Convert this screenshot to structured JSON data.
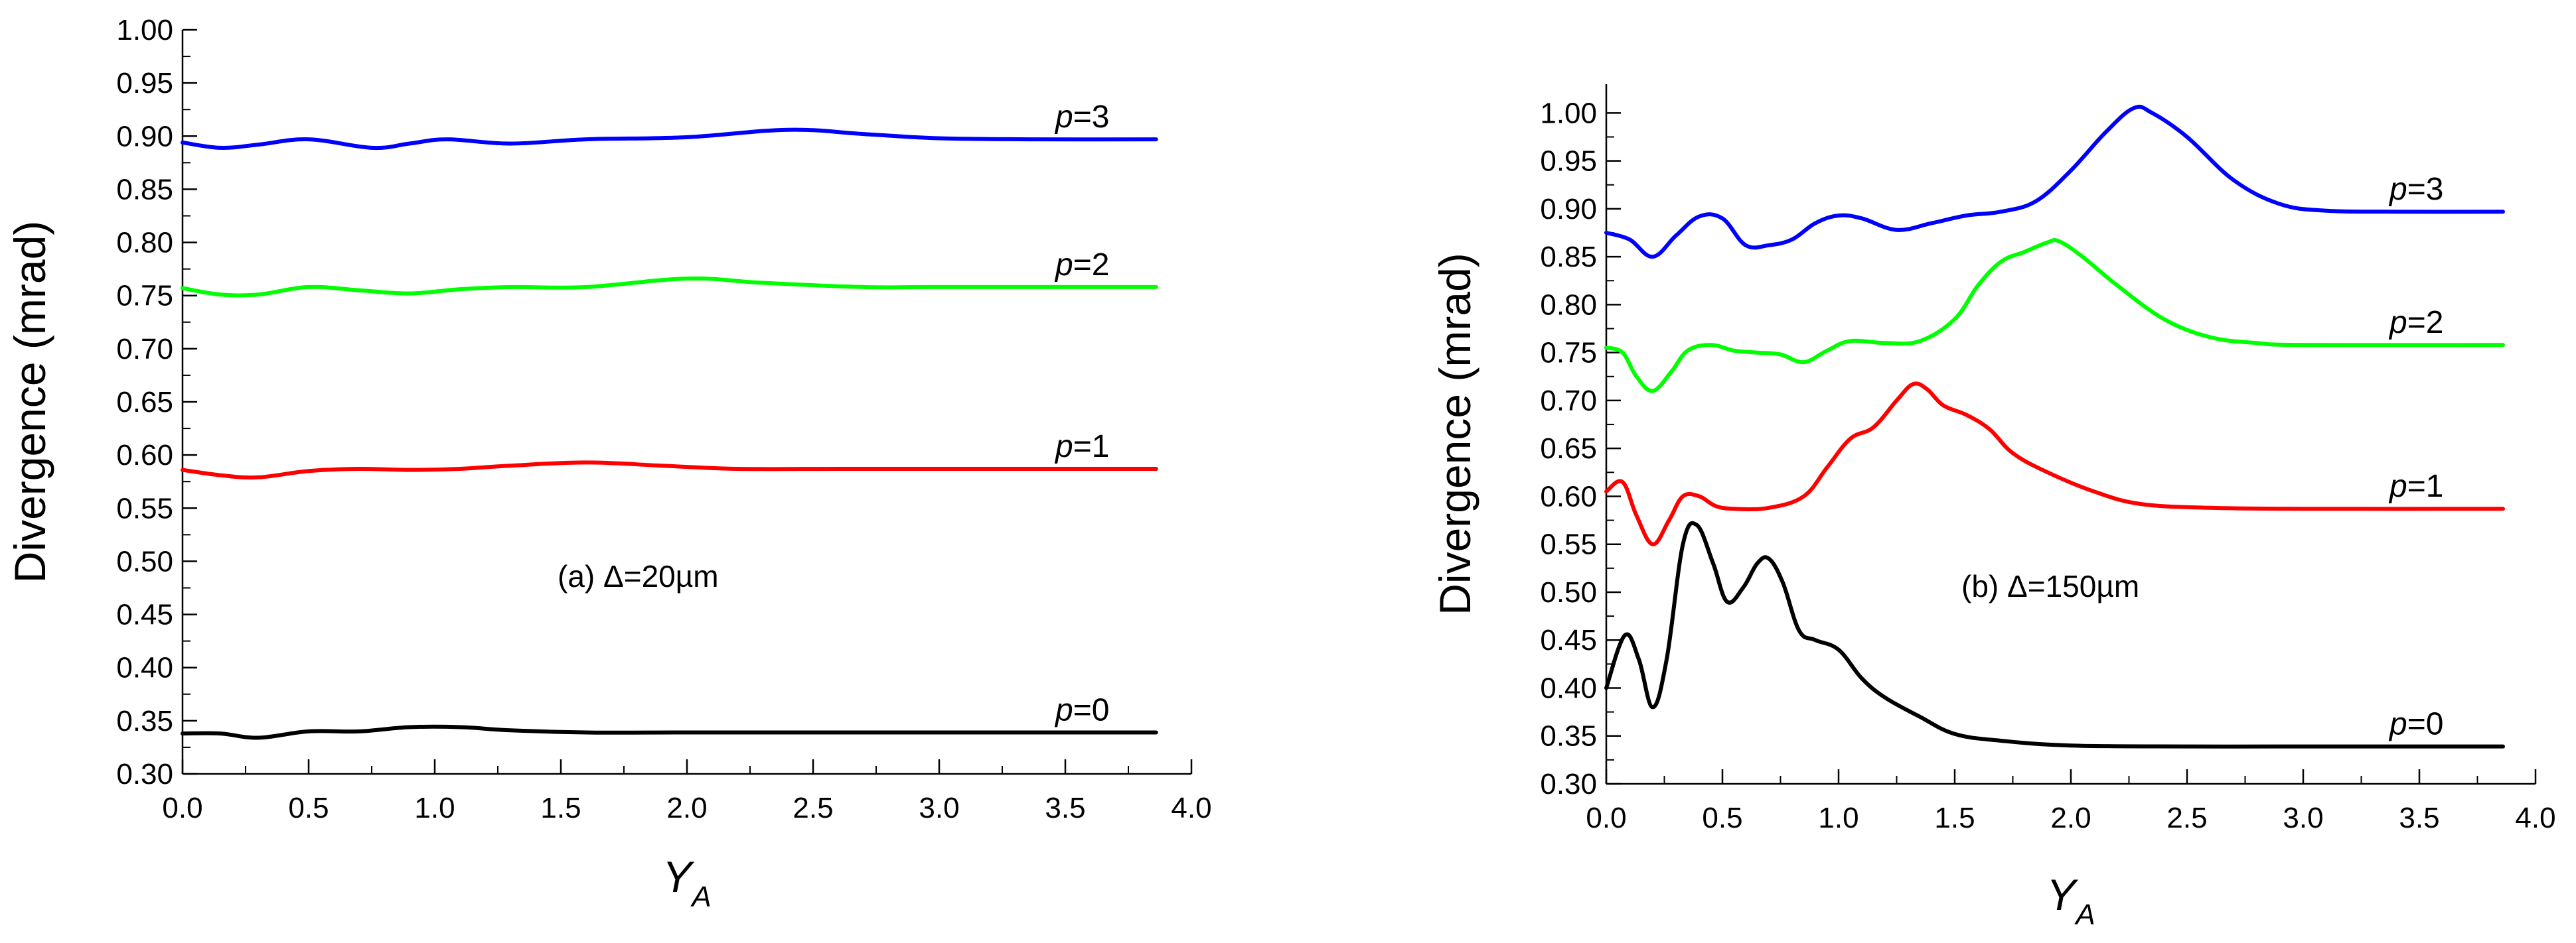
{
  "chart_data": [
    {
      "type": "line",
      "id": "a",
      "annotation": "(a) Δ=20µm",
      "xlabel": "Y",
      "xlabel_sub": "A",
      "ylabel": "Divergence (mrad)",
      "xlim": [
        0.0,
        4.0
      ],
      "ylim": [
        0.3,
        1.0
      ],
      "xticks": [
        "0.0",
        "0.5",
        "1.0",
        "1.5",
        "2.0",
        "2.5",
        "3.0",
        "3.5",
        "4.0"
      ],
      "yticks": [
        "0.30",
        "0.35",
        "0.40",
        "0.45",
        "0.50",
        "0.55",
        "0.60",
        "0.65",
        "0.70",
        "0.75",
        "0.80",
        "0.85",
        "0.90",
        "0.95",
        "1.00"
      ],
      "series": [
        {
          "name": "p=0",
          "label_italic": "p",
          "label_rest": "=0",
          "color": "#000000",
          "x": [
            0,
            0.15,
            0.3,
            0.5,
            0.7,
            0.9,
            1.1,
            1.3,
            1.6,
            2.0,
            2.5,
            3.0,
            3.86
          ],
          "y": [
            0.338,
            0.338,
            0.334,
            0.34,
            0.34,
            0.344,
            0.344,
            0.341,
            0.339,
            0.339,
            0.339,
            0.339,
            0.339
          ]
        },
        {
          "name": "p=1",
          "label_italic": "p",
          "label_rest": "=1",
          "color": "#ff0000",
          "x": [
            0,
            0.15,
            0.3,
            0.5,
            0.7,
            0.9,
            1.1,
            1.3,
            1.6,
            1.9,
            2.2,
            2.6,
            3.0,
            3.86
          ],
          "y": [
            0.586,
            0.581,
            0.579,
            0.585,
            0.587,
            0.586,
            0.587,
            0.59,
            0.593,
            0.59,
            0.587,
            0.587,
            0.587,
            0.587
          ]
        },
        {
          "name": "p=2",
          "label_italic": "p",
          "label_rest": "=2",
          "color": "#00ff00",
          "x": [
            0,
            0.15,
            0.3,
            0.5,
            0.7,
            0.9,
            1.1,
            1.3,
            1.6,
            2.0,
            2.3,
            2.7,
            3.0,
            3.86
          ],
          "y": [
            0.757,
            0.751,
            0.751,
            0.758,
            0.755,
            0.752,
            0.756,
            0.758,
            0.758,
            0.766,
            0.762,
            0.758,
            0.758,
            0.758
          ]
        },
        {
          "name": "p=3",
          "label_italic": "p",
          "label_rest": "=3",
          "color": "#0000ff",
          "x": [
            0,
            0.15,
            0.3,
            0.5,
            0.75,
            0.9,
            1.05,
            1.3,
            1.6,
            2.0,
            2.4,
            2.7,
            3.0,
            3.4,
            3.86
          ],
          "y": [
            0.894,
            0.889,
            0.892,
            0.897,
            0.889,
            0.893,
            0.897,
            0.893,
            0.897,
            0.899,
            0.906,
            0.902,
            0.898,
            0.897,
            0.897
          ]
        }
      ]
    },
    {
      "type": "line",
      "id": "b",
      "annotation": "(b) Δ=150µm",
      "xlabel": "Y",
      "xlabel_sub": "A",
      "ylabel": "Divergence (mrad)",
      "xlim": [
        0.0,
        4.0
      ],
      "ylim": [
        0.3,
        1.03
      ],
      "xticks": [
        "0.0",
        "0.5",
        "1.0",
        "1.5",
        "2.0",
        "2.5",
        "3.0",
        "3.5",
        "4.0"
      ],
      "yticks": [
        "0.30",
        "0.35",
        "0.40",
        "0.45",
        "0.50",
        "0.55",
        "0.60",
        "0.65",
        "0.70",
        "0.75",
        "0.80",
        "0.85",
        "0.90",
        "0.95",
        "1.00"
      ],
      "series": [
        {
          "name": "p=0",
          "label_italic": "p",
          "label_rest": "=0",
          "color": "#000000",
          "x": [
            0,
            0.08,
            0.14,
            0.2,
            0.26,
            0.33,
            0.39,
            0.46,
            0.52,
            0.59,
            0.65,
            0.7,
            0.76,
            0.83,
            0.9,
            1.0,
            1.1,
            1.2,
            1.35,
            1.5,
            1.7,
            2.0,
            2.5,
            3.0,
            3.86
          ],
          "y": [
            0.4,
            0.455,
            0.43,
            0.38,
            0.43,
            0.55,
            0.57,
            0.53,
            0.49,
            0.505,
            0.53,
            0.535,
            0.51,
            0.46,
            0.45,
            0.44,
            0.41,
            0.39,
            0.37,
            0.352,
            0.345,
            0.34,
            0.339,
            0.339,
            0.339
          ]
        },
        {
          "name": "p=1",
          "label_italic": "p",
          "label_rest": "=1",
          "color": "#ff0000",
          "x": [
            0,
            0.07,
            0.13,
            0.2,
            0.27,
            0.33,
            0.4,
            0.47,
            0.55,
            0.7,
            0.85,
            0.95,
            1.05,
            1.15,
            1.25,
            1.32,
            1.38,
            1.45,
            1.55,
            1.65,
            1.75,
            1.9,
            2.1,
            2.3,
            2.6,
            3.0,
            3.86
          ],
          "y": [
            0.605,
            0.615,
            0.58,
            0.55,
            0.575,
            0.6,
            0.6,
            0.59,
            0.587,
            0.588,
            0.6,
            0.63,
            0.66,
            0.672,
            0.7,
            0.717,
            0.712,
            0.695,
            0.685,
            0.67,
            0.645,
            0.625,
            0.605,
            0.592,
            0.588,
            0.587,
            0.587
          ]
        },
        {
          "name": "p=2",
          "label_italic": "p",
          "label_rest": "=2",
          "color": "#00ff00",
          "x": [
            0,
            0.07,
            0.13,
            0.2,
            0.28,
            0.35,
            0.45,
            0.55,
            0.65,
            0.75,
            0.85,
            0.95,
            1.05,
            1.2,
            1.35,
            1.5,
            1.6,
            1.7,
            1.8,
            1.9,
            1.95,
            2.05,
            2.2,
            2.4,
            2.6,
            2.8,
            3.0,
            3.86
          ],
          "y": [
            0.755,
            0.75,
            0.725,
            0.71,
            0.73,
            0.752,
            0.758,
            0.752,
            0.75,
            0.748,
            0.74,
            0.752,
            0.762,
            0.76,
            0.762,
            0.785,
            0.82,
            0.845,
            0.855,
            0.865,
            0.866,
            0.85,
            0.82,
            0.785,
            0.766,
            0.76,
            0.758,
            0.758
          ]
        },
        {
          "name": "p=3",
          "label_italic": "p",
          "label_rest": "=3",
          "color": "#0000ff",
          "x": [
            0,
            0.1,
            0.2,
            0.3,
            0.4,
            0.5,
            0.6,
            0.7,
            0.8,
            0.9,
            1.0,
            1.1,
            1.25,
            1.4,
            1.55,
            1.7,
            1.85,
            2.0,
            2.15,
            2.27,
            2.35,
            2.5,
            2.7,
            2.9,
            3.1,
            3.4,
            3.86
          ],
          "y": [
            0.875,
            0.868,
            0.85,
            0.872,
            0.892,
            0.89,
            0.862,
            0.862,
            0.868,
            0.885,
            0.893,
            0.89,
            0.878,
            0.885,
            0.893,
            0.897,
            0.908,
            0.94,
            0.98,
            1.005,
            1.0,
            0.975,
            0.93,
            0.905,
            0.898,
            0.897,
            0.897
          ]
        }
      ]
    }
  ]
}
